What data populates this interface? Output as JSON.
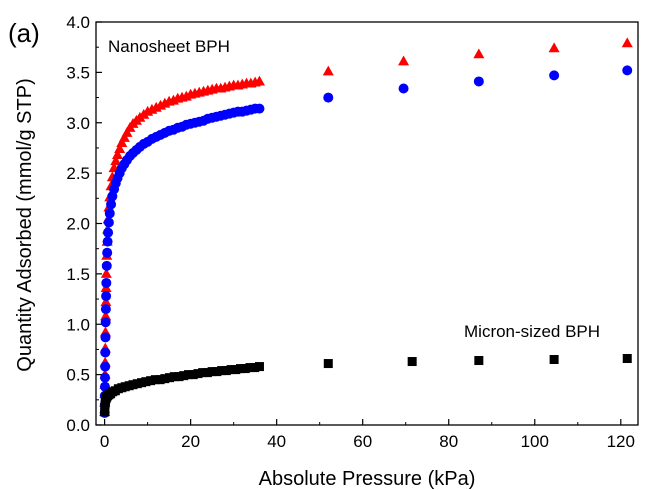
{
  "chart_data": {
    "type": "scatter",
    "panel_label": "(a)",
    "xlabel": "Absolute Pressure (kPa)",
    "ylabel": "Quantity Adsorbed (mmol/g STP)",
    "xlim": [
      -2,
      124
    ],
    "ylim": [
      0.0,
      4.0
    ],
    "xticks": [
      0,
      20,
      40,
      60,
      80,
      100,
      120
    ],
    "yticks": [
      0.0,
      0.5,
      1.0,
      1.5,
      2.0,
      2.5,
      3.0,
      3.5,
      4.0
    ],
    "xtick_labels": [
      "0",
      "20",
      "40",
      "60",
      "80",
      "100",
      "120"
    ],
    "ytick_labels": [
      "0.0",
      "0.5",
      "1.0",
      "1.5",
      "2.0",
      "2.5",
      "3.0",
      "3.5",
      "4.0"
    ],
    "grid": false,
    "annotations": [
      {
        "id": "nanosheet",
        "text": "Nanosheet BPH"
      },
      {
        "id": "micron",
        "text": "Micron-sized BPH"
      }
    ],
    "series": [
      {
        "marker": "triangle",
        "color": "#ff0000",
        "x": [
          0.02,
          0.04,
          0.06,
          0.08,
          0.1,
          0.13,
          0.16,
          0.2,
          0.25,
          0.3,
          0.35,
          0.4,
          0.5,
          0.6,
          0.7,
          0.8,
          1.0,
          1.2,
          1.5,
          1.8,
          2.2,
          2.6,
          3.0,
          3.5,
          4.0,
          4.6,
          5.2,
          5.9,
          6.6,
          7.4,
          8.2,
          9.1,
          10.0,
          11.0,
          12.0,
          13.0,
          14.0,
          15.0,
          16.0,
          17.0,
          18.0,
          19.0,
          20.0,
          21.0,
          22.0,
          23.0,
          24.0,
          25.0,
          26.0,
          27.0,
          28.0,
          29.0,
          30.0,
          31.0,
          32.0,
          33.0,
          34.0,
          35.0,
          36.0,
          52.0,
          69.5,
          87.0,
          104.5,
          121.5
        ],
        "y": [
          0.13,
          0.22,
          0.31,
          0.4,
          0.5,
          0.62,
          0.76,
          0.92,
          1.08,
          1.22,
          1.36,
          1.5,
          1.68,
          1.82,
          1.94,
          2.04,
          2.16,
          2.26,
          2.37,
          2.46,
          2.55,
          2.62,
          2.68,
          2.74,
          2.8,
          2.85,
          2.9,
          2.95,
          2.99,
          3.02,
          3.05,
          3.08,
          3.11,
          3.13,
          3.15,
          3.17,
          3.19,
          3.21,
          3.22,
          3.24,
          3.25,
          3.26,
          3.28,
          3.29,
          3.3,
          3.31,
          3.32,
          3.33,
          3.34,
          3.34,
          3.35,
          3.36,
          3.37,
          3.37,
          3.38,
          3.39,
          3.39,
          3.4,
          3.41,
          3.51,
          3.61,
          3.68,
          3.74,
          3.79
        ]
      },
      {
        "marker": "circle",
        "color": "#0000ff",
        "x": [
          0.02,
          0.04,
          0.06,
          0.08,
          0.1,
          0.13,
          0.16,
          0.2,
          0.25,
          0.3,
          0.35,
          0.4,
          0.5,
          0.6,
          0.7,
          0.8,
          1.0,
          1.2,
          1.5,
          1.8,
          2.2,
          2.6,
          3.0,
          3.5,
          4.0,
          4.6,
          5.2,
          5.9,
          6.6,
          7.4,
          8.2,
          9.1,
          10.0,
          11.0,
          12.0,
          13.0,
          14.0,
          15.0,
          16.0,
          17.0,
          18.0,
          19.0,
          20.0,
          21.0,
          22.0,
          23.0,
          24.0,
          25.0,
          26.0,
          27.0,
          28.0,
          29.0,
          30.0,
          31.0,
          32.0,
          33.0,
          34.0,
          35.0,
          36.0,
          52.0,
          69.5,
          87.0,
          104.5,
          121.5
        ],
        "y": [
          0.12,
          0.2,
          0.29,
          0.38,
          0.47,
          0.58,
          0.72,
          0.87,
          1.02,
          1.15,
          1.28,
          1.41,
          1.58,
          1.71,
          1.82,
          1.91,
          2.01,
          2.1,
          2.19,
          2.27,
          2.34,
          2.4,
          2.45,
          2.5,
          2.55,
          2.59,
          2.63,
          2.67,
          2.7,
          2.73,
          2.76,
          2.79,
          2.81,
          2.84,
          2.86,
          2.88,
          2.9,
          2.92,
          2.93,
          2.95,
          2.96,
          2.98,
          2.99,
          3.0,
          3.01,
          3.02,
          3.04,
          3.05,
          3.06,
          3.07,
          3.08,
          3.09,
          3.1,
          3.11,
          3.11,
          3.12,
          3.13,
          3.14,
          3.14,
          3.25,
          3.34,
          3.41,
          3.47,
          3.52
        ]
      },
      {
        "marker": "square",
        "color": "#000000",
        "x": [
          0.02,
          0.05,
          0.1,
          0.15,
          0.2,
          0.3,
          0.4,
          0.5,
          0.7,
          1.0,
          1.4,
          1.9,
          2.5,
          3.2,
          4.0,
          4.8,
          5.7,
          6.6,
          7.6,
          8.6,
          9.6,
          10.7,
          11.8,
          12.9,
          14.0,
          15.1,
          16.2,
          17.3,
          18.4,
          19.5,
          20.6,
          21.7,
          22.8,
          23.9,
          25.0,
          26.1,
          27.2,
          28.3,
          29.4,
          30.5,
          31.6,
          32.7,
          33.8,
          34.9,
          36.0,
          52.0,
          71.5,
          87.0,
          104.5,
          121.5
        ],
        "y": [
          0.13,
          0.17,
          0.2,
          0.22,
          0.24,
          0.26,
          0.27,
          0.28,
          0.29,
          0.3,
          0.31,
          0.33,
          0.34,
          0.36,
          0.37,
          0.38,
          0.39,
          0.4,
          0.41,
          0.42,
          0.43,
          0.44,
          0.45,
          0.45,
          0.46,
          0.47,
          0.48,
          0.48,
          0.49,
          0.5,
          0.5,
          0.51,
          0.52,
          0.52,
          0.53,
          0.53,
          0.54,
          0.54,
          0.55,
          0.55,
          0.56,
          0.56,
          0.57,
          0.57,
          0.58,
          0.61,
          0.63,
          0.64,
          0.65,
          0.66
        ]
      }
    ]
  }
}
